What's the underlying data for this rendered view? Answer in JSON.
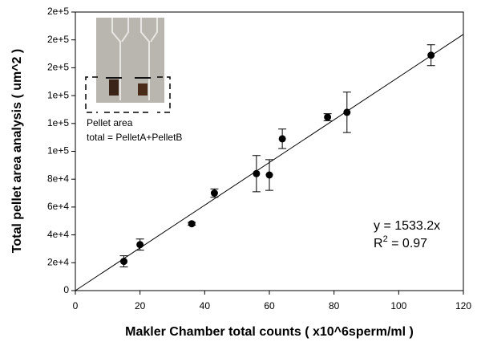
{
  "chart_data": {
    "type": "scatter",
    "xlabel": "Makler Chamber total counts ( x10^6sperm/ml )",
    "ylabel": "Total pellet area analysis ( um^2 )",
    "series": [
      {
        "color": "#000000",
        "x": [
          15,
          20,
          36,
          43,
          56,
          60,
          64,
          78,
          84,
          110
        ],
        "values": [
          21000,
          33000,
          48000,
          70000,
          84000,
          83000,
          109000,
          124500,
          128000,
          169000
        ],
        "errors": [
          4000,
          4000,
          1000,
          3000,
          13000,
          11000,
          7000,
          2500,
          14500,
          7500
        ]
      }
    ],
    "fit_slope": 1533.2,
    "equation": "y = 1533.2x",
    "r2": [
      "R",
      "2",
      " = 0.97"
    ],
    "inset_caption": [
      "Pellet area",
      "total = PelletA+PelletB"
    ],
    "xlim": [
      0,
      120
    ],
    "xticks": [
      0,
      20,
      40,
      60,
      80,
      100,
      120
    ],
    "ylim": [
      0,
      200000
    ],
    "yticks": [
      0,
      {
        "value": 20000,
        "label": "2e+4"
      },
      {
        "value": 40000,
        "label": "4e+4"
      },
      {
        "value": 60000,
        "label": "6e+4"
      },
      {
        "value": 80000,
        "label": "8e+4"
      },
      {
        "value": 100000,
        "label": "1e+5"
      },
      {
        "value": 120000,
        "label": "1e+5"
      },
      {
        "value": 140000,
        "label": "1e+5"
      },
      {
        "value": 160000,
        "label": "2e+5"
      },
      {
        "value": 180000,
        "label": "2e+5"
      },
      {
        "value": 200000,
        "label": "2e+5"
      }
    ]
  }
}
